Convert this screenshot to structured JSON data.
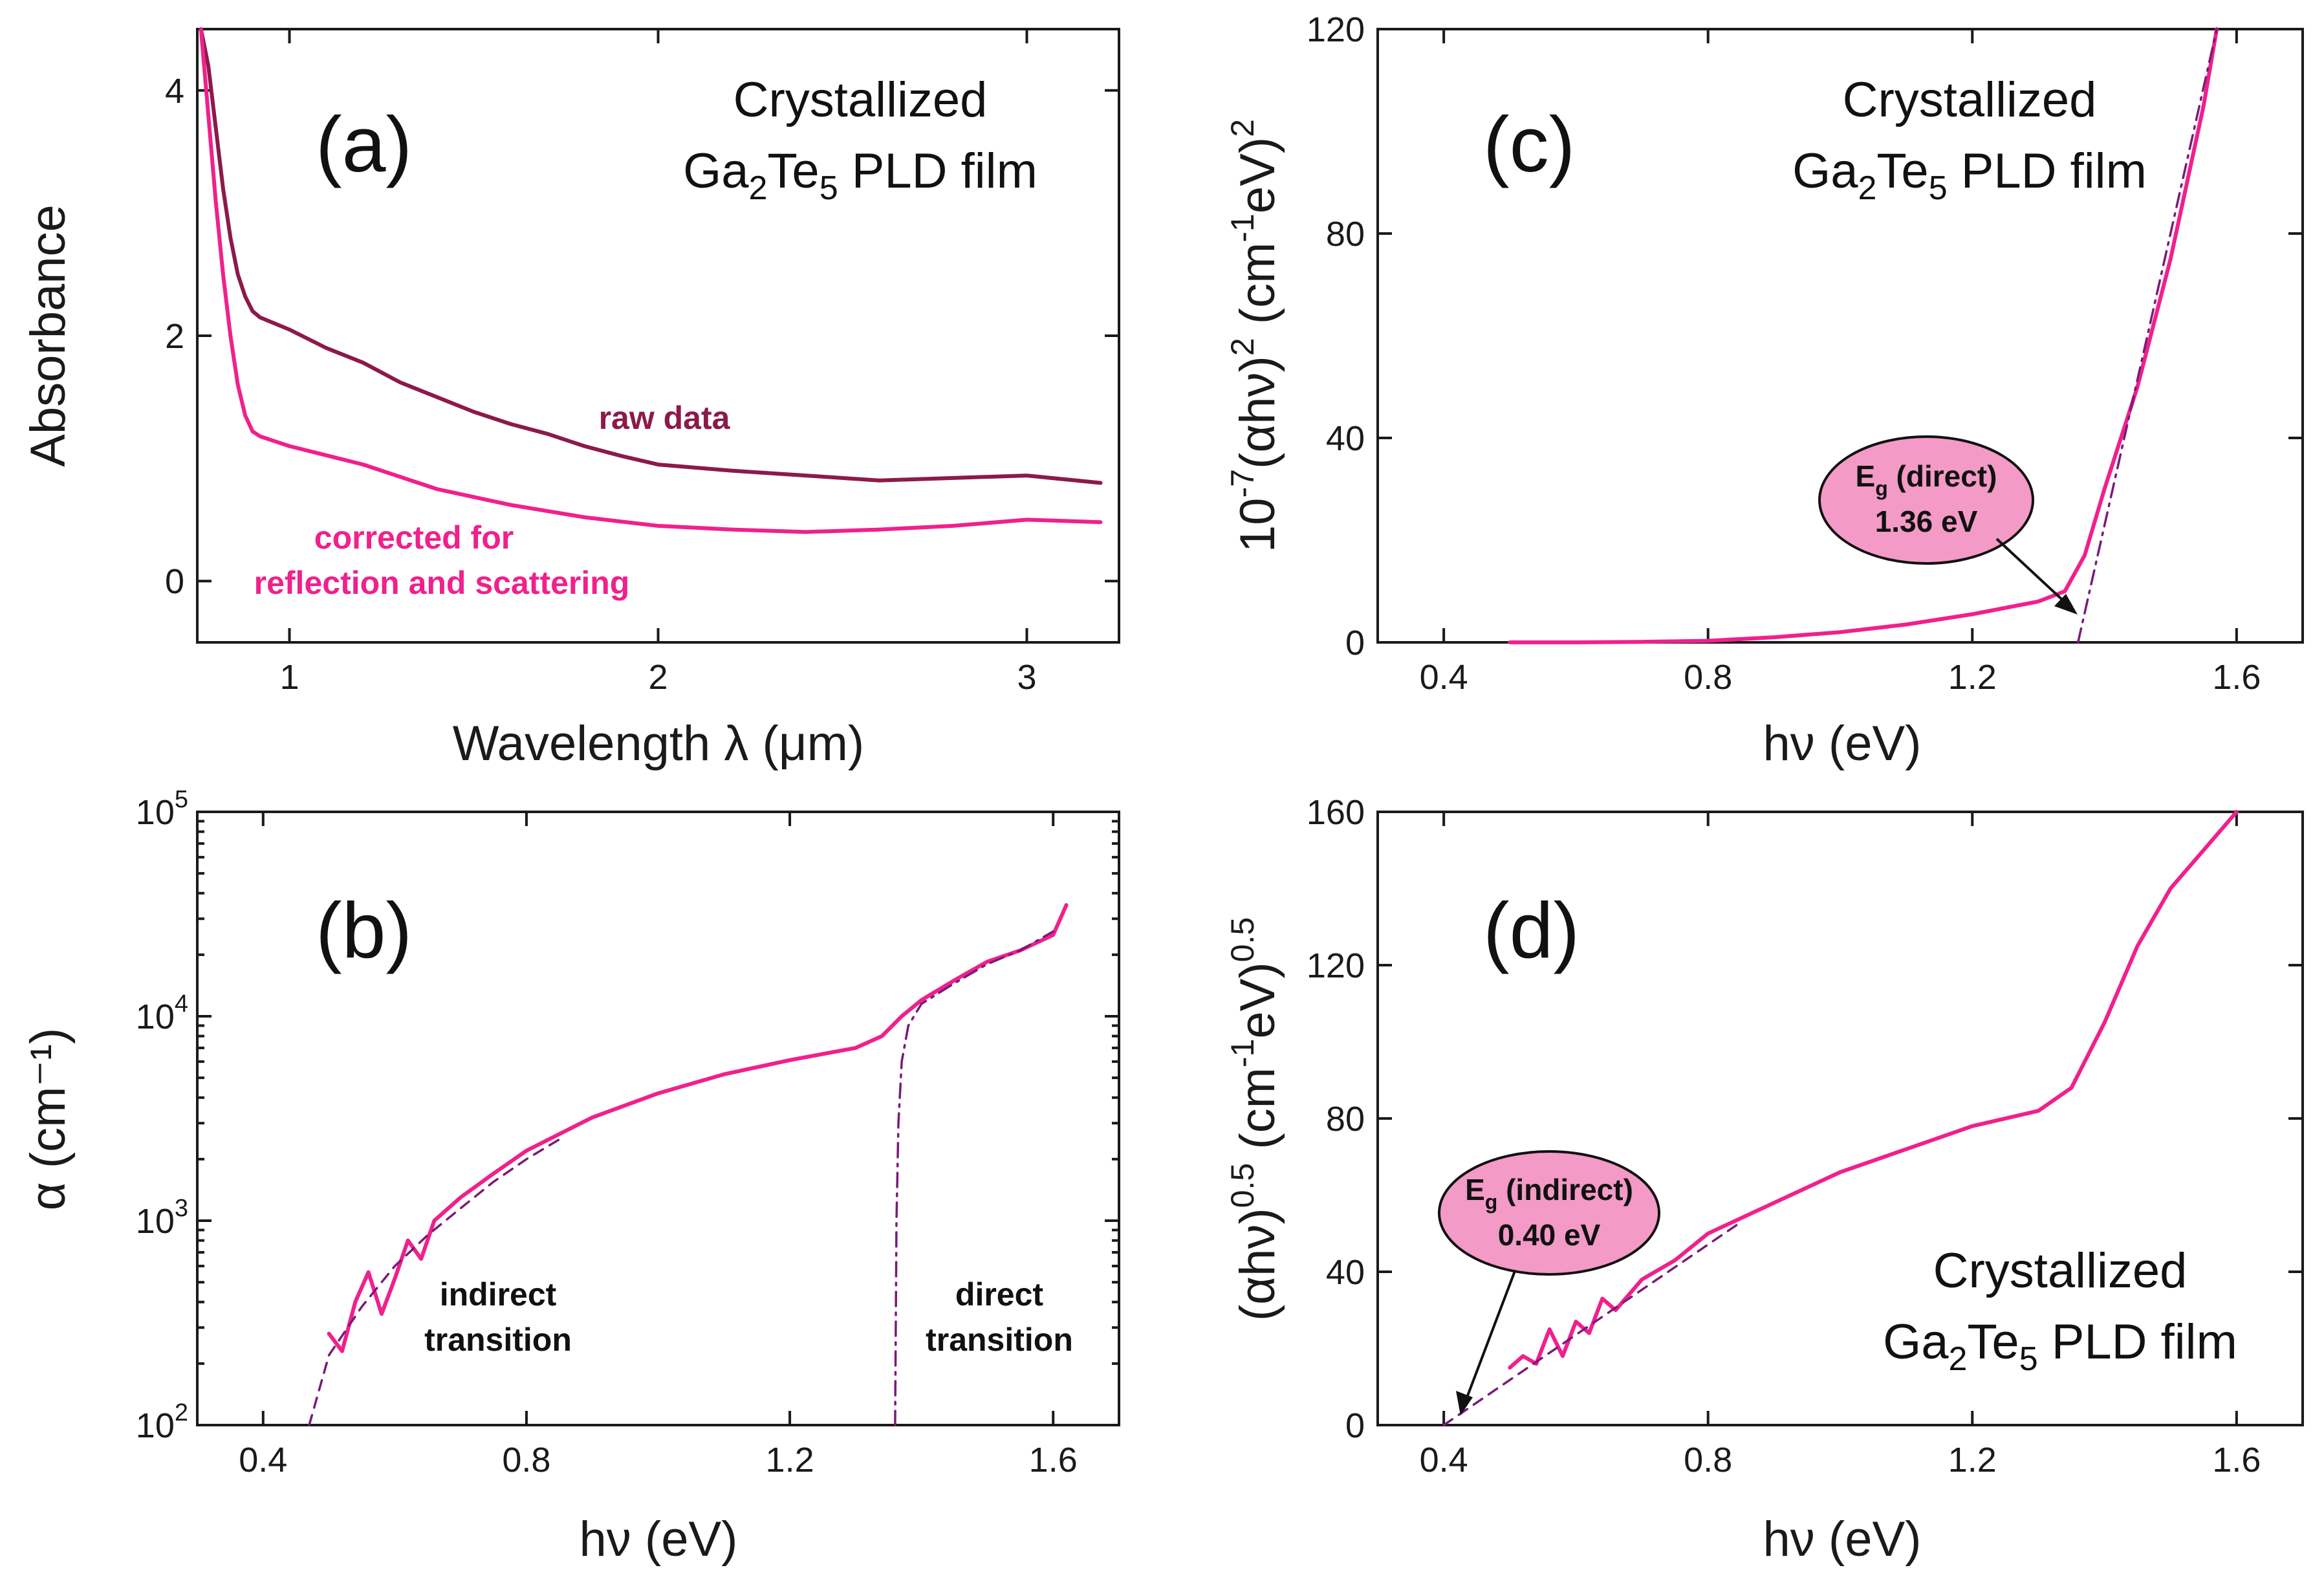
{
  "colors": {
    "raw": "#8b1a4a",
    "corrected": "#f0208c",
    "fit": "#7a1a7a",
    "bubble_fill": "#f39ac6",
    "text": "#111111"
  },
  "chart_data": [
    {
      "id": "a",
      "type": "line",
      "panel_label": "(a)",
      "title": [
        "Crystallized",
        "Ga",
        "2",
        "Te",
        "5",
        " PLD film"
      ],
      "xlabel": "Wavelength λ (μm)",
      "ylabel": "Absorbance",
      "xlim": [
        0.75,
        3.25
      ],
      "ylim": [
        -0.5,
        4.5
      ],
      "xticks": [
        1,
        2,
        3
      ],
      "yticks": [
        0,
        2,
        4
      ],
      "series": [
        {
          "name": "raw data",
          "x": [
            0.76,
            0.78,
            0.8,
            0.82,
            0.84,
            0.86,
            0.88,
            0.9,
            0.92,
            1.0,
            1.1,
            1.2,
            1.3,
            1.4,
            1.5,
            1.6,
            1.7,
            1.8,
            1.9,
            2.0,
            2.2,
            2.4,
            2.6,
            2.8,
            3.0,
            3.2
          ],
          "y": [
            4.5,
            4.2,
            3.7,
            3.2,
            2.8,
            2.5,
            2.32,
            2.2,
            2.15,
            2.05,
            1.9,
            1.78,
            1.62,
            1.5,
            1.38,
            1.28,
            1.2,
            1.1,
            1.02,
            0.95,
            0.9,
            0.86,
            0.82,
            0.84,
            0.86,
            0.8
          ]
        },
        {
          "name": "corrected for reflection and scattering",
          "x": [
            0.76,
            0.78,
            0.8,
            0.82,
            0.84,
            0.86,
            0.88,
            0.9,
            0.92,
            0.95,
            1.0,
            1.2,
            1.4,
            1.6,
            1.8,
            2.0,
            2.2,
            2.4,
            2.6,
            2.8,
            3.0,
            3.2
          ],
          "y": [
            4.5,
            3.8,
            3.1,
            2.5,
            2.0,
            1.6,
            1.35,
            1.22,
            1.18,
            1.15,
            1.1,
            0.95,
            0.75,
            0.62,
            0.52,
            0.45,
            0.42,
            0.4,
            0.42,
            0.45,
            0.5,
            0.48
          ]
        }
      ],
      "annotations": [
        "raw data",
        "corrected for",
        "reflection and scattering"
      ]
    },
    {
      "id": "b",
      "type": "line",
      "panel_label": "(b)",
      "xlabel": "hν (eV)",
      "ylabel": "α (cm⁻¹)",
      "yscale": "log",
      "xlim": [
        0.3,
        1.7
      ],
      "ylim": [
        100,
        100000
      ],
      "xticks": [
        0.4,
        0.8,
        1.2,
        1.6
      ],
      "yticks": [
        100,
        1000,
        10000,
        100000
      ],
      "ytick_labels": [
        [
          "10",
          "2"
        ],
        [
          "10",
          "3"
        ],
        [
          "10",
          "4"
        ],
        [
          "10",
          "5"
        ]
      ],
      "series": [
        {
          "name": "α",
          "x": [
            0.5,
            0.52,
            0.54,
            0.56,
            0.58,
            0.6,
            0.62,
            0.64,
            0.66,
            0.7,
            0.75,
            0.8,
            0.9,
            1.0,
            1.1,
            1.2,
            1.3,
            1.34,
            1.37,
            1.4,
            1.45,
            1.5,
            1.55,
            1.6,
            1.62
          ],
          "y": [
            280,
            230,
            400,
            560,
            350,
            520,
            800,
            650,
            1000,
            1300,
            1700,
            2200,
            3200,
            4200,
            5200,
            6100,
            7000,
            8000,
            10000,
            12000,
            15000,
            18500,
            21000,
            25000,
            35000
          ]
        },
        {
          "name": "indirect fit",
          "style": "dashed",
          "x": [
            0.47,
            0.5,
            0.55,
            0.6,
            0.65,
            0.7,
            0.75,
            0.8,
            0.85
          ],
          "y": [
            100,
            220,
            380,
            600,
            850,
            1150,
            1550,
            2000,
            2500
          ]
        },
        {
          "name": "direct fit",
          "style": "dashdot",
          "x": [
            1.36,
            1.362,
            1.365,
            1.37,
            1.38,
            1.4,
            1.45,
            1.5,
            1.55,
            1.6
          ],
          "y": [
            100,
            1000,
            3000,
            6000,
            9000,
            11500,
            14500,
            18000,
            21000,
            26000
          ]
        }
      ],
      "annotations": [
        "indirect",
        "transition",
        "direct",
        "transition"
      ]
    },
    {
      "id": "c",
      "type": "line",
      "panel_label": "(c)",
      "title": [
        "Crystallized",
        "Ga",
        "2",
        "Te",
        "5",
        " PLD film"
      ],
      "xlabel": "hν (eV)",
      "ylabel_parts": [
        "10",
        "-7",
        "(αhν)",
        "2",
        " (cm",
        "-1",
        "eV)",
        "2"
      ],
      "xlim": [
        0.3,
        1.7
      ],
      "ylim": [
        0,
        120
      ],
      "xticks": [
        0.4,
        0.8,
        1.2,
        1.6
      ],
      "yticks": [
        0,
        40,
        80,
        120
      ],
      "series": [
        {
          "name": "(αhν)^2",
          "x": [
            0.5,
            0.6,
            0.7,
            0.8,
            0.9,
            1.0,
            1.1,
            1.2,
            1.3,
            1.34,
            1.37,
            1.4,
            1.45,
            1.5,
            1.55,
            1.57
          ],
          "y": [
            0,
            0,
            0.1,
            0.3,
            1,
            2,
            3.5,
            5.5,
            8,
            10,
            17,
            30,
            50,
            75,
            105,
            120
          ]
        },
        {
          "name": "direct linear fit",
          "style": "dashdot",
          "x": [
            1.36,
            1.57
          ],
          "y": [
            0,
            120
          ]
        }
      ],
      "bubble": {
        "label": "E",
        "sub": "g",
        "label_rest": " (direct)",
        "value": "1.36 eV"
      }
    },
    {
      "id": "d",
      "type": "line",
      "panel_label": "(d)",
      "title": [
        "Crystallized",
        "Ga",
        "2",
        "Te",
        "5",
        " PLD film"
      ],
      "xlabel": "hν (eV)",
      "ylabel_parts": [
        "(αhν)",
        "0.5",
        " (cm",
        "-1",
        "eV)",
        "0.5"
      ],
      "xlim": [
        0.3,
        1.7
      ],
      "ylim": [
        0,
        160
      ],
      "xticks": [
        0.4,
        0.8,
        1.2,
        1.6
      ],
      "yticks": [
        0,
        40,
        80,
        120,
        160
      ],
      "series": [
        {
          "name": "(αhν)^0.5",
          "x": [
            0.5,
            0.52,
            0.54,
            0.56,
            0.58,
            0.6,
            0.62,
            0.64,
            0.66,
            0.7,
            0.75,
            0.8,
            0.9,
            1.0,
            1.1,
            1.2,
            1.3,
            1.35,
            1.4,
            1.45,
            1.5,
            1.55,
            1.6
          ],
          "y": [
            15,
            18,
            16,
            25,
            18,
            27,
            24,
            33,
            30,
            38,
            43,
            50,
            58,
            66,
            72,
            78,
            82,
            88,
            105,
            125,
            140,
            150,
            160
          ]
        },
        {
          "name": "indirect linear fit",
          "style": "dashed",
          "x": [
            0.4,
            0.85
          ],
          "y": [
            0,
            53
          ]
        }
      ],
      "bubble": {
        "label": "E",
        "sub": "g",
        "label_rest": " (indirect)",
        "value": "0.40 eV"
      }
    }
  ]
}
